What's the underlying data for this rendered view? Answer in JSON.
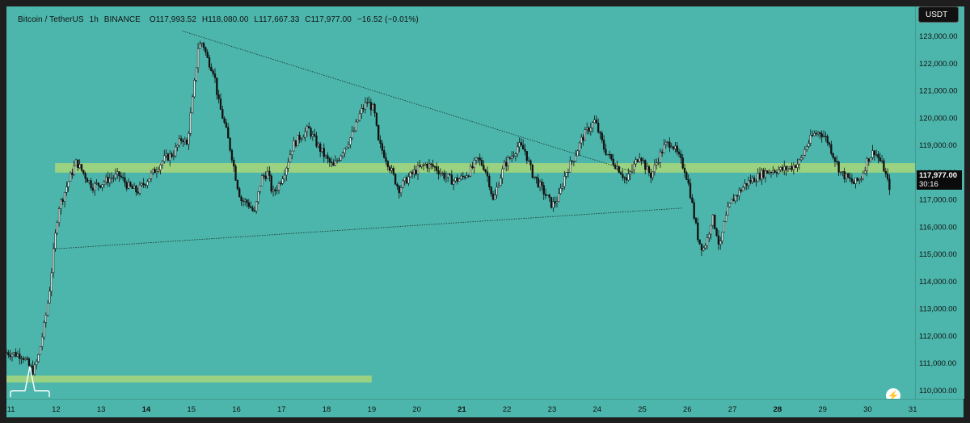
{
  "header": {
    "symbol": "Bitcoin / TetherUS",
    "interval": "1h",
    "exchange": "BINANCE",
    "open": "O117,993.52",
    "high": "H118,080.00",
    "low": "L117,667.33",
    "close": "C117,977.00",
    "change": "−16.52 (−0.01%)"
  },
  "price_axis": {
    "currency_button": "USDT",
    "current_price": "117,977.00",
    "countdown": "30:16"
  },
  "colors": {
    "background": "#4db6ac",
    "candle": "#111111",
    "zone": "#a8d77a"
  },
  "chart_data": {
    "type": "candlestick",
    "title": "",
    "xlabel": "",
    "ylabel": "",
    "ylim": [
      109700,
      124100
    ],
    "xlim": [
      10.9,
      31.05
    ],
    "y_ticks": [
      110000,
      111000,
      112000,
      113000,
      114000,
      115000,
      116000,
      117000,
      118000,
      119000,
      120000,
      121000,
      122000,
      123000
    ],
    "y_tick_labels": [
      "110,000.00",
      "111,000.00",
      "112,000.00",
      "113,000.00",
      "114,000.00",
      "115,000.00",
      "116,000.00",
      "117,000.00",
      "118,000.00",
      "119,000.00",
      "120,000.00",
      "121,000.00",
      "122,000.00",
      "123,000.00"
    ],
    "x_ticks": [
      11,
      12,
      13,
      14,
      15,
      16,
      17,
      18,
      19,
      20,
      21,
      22,
      23,
      24,
      25,
      26,
      27,
      28,
      29,
      30,
      31
    ],
    "x_tick_labels": [
      "11",
      "12",
      "13",
      "14",
      "15",
      "16",
      "17",
      "18",
      "19",
      "20",
      "21",
      "22",
      "23",
      "24",
      "25",
      "26",
      "27",
      "28",
      "29",
      "30",
      "31"
    ],
    "bold_ticks": [
      14,
      21,
      28
    ],
    "price_path_anchors": [
      [
        10.9,
        111400
      ],
      [
        11.25,
        111300
      ],
      [
        11.4,
        110900
      ],
      [
        11.5,
        110700
      ],
      [
        11.6,
        111200
      ],
      [
        11.75,
        112500
      ],
      [
        11.85,
        113600
      ],
      [
        11.95,
        115200
      ],
      [
        12.05,
        116700
      ],
      [
        12.15,
        117100
      ],
      [
        12.3,
        117800
      ],
      [
        12.45,
        118400
      ],
      [
        12.6,
        118000
      ],
      [
        12.8,
        117500
      ],
      [
        13.0,
        117600
      ],
      [
        13.2,
        117800
      ],
      [
        13.4,
        117900
      ],
      [
        13.6,
        117500
      ],
      [
        13.8,
        117300
      ],
      [
        14.0,
        117700
      ],
      [
        14.2,
        118100
      ],
      [
        14.4,
        118500
      ],
      [
        14.6,
        118700
      ],
      [
        14.8,
        119300
      ],
      [
        14.9,
        119000
      ],
      [
        15.05,
        121000
      ],
      [
        15.15,
        122600
      ],
      [
        15.25,
        122800
      ],
      [
        15.35,
        122200
      ],
      [
        15.5,
        121700
      ],
      [
        15.6,
        120600
      ],
      [
        15.75,
        119700
      ],
      [
        15.9,
        118600
      ],
      [
        16.0,
        117700
      ],
      [
        16.1,
        117000
      ],
      [
        16.25,
        116900
      ],
      [
        16.4,
        116500
      ],
      [
        16.55,
        117800
      ],
      [
        16.7,
        118000
      ],
      [
        16.8,
        117200
      ],
      [
        16.95,
        117600
      ],
      [
        17.1,
        118200
      ],
      [
        17.25,
        119000
      ],
      [
        17.4,
        119300
      ],
      [
        17.6,
        119600
      ],
      [
        17.8,
        119000
      ],
      [
        18.0,
        118500
      ],
      [
        18.15,
        118200
      ],
      [
        18.35,
        118800
      ],
      [
        18.5,
        119200
      ],
      [
        18.6,
        119500
      ],
      [
        18.75,
        120200
      ],
      [
        18.9,
        120600
      ],
      [
        19.05,
        120300
      ],
      [
        19.15,
        119100
      ],
      [
        19.3,
        118600
      ],
      [
        19.45,
        118000
      ],
      [
        19.6,
        117400
      ],
      [
        19.8,
        117800
      ],
      [
        20.0,
        118100
      ],
      [
        20.2,
        118300
      ],
      [
        20.4,
        118200
      ],
      [
        20.6,
        117900
      ],
      [
        20.8,
        117700
      ],
      [
        21.0,
        117800
      ],
      [
        21.2,
        118100
      ],
      [
        21.35,
        118500
      ],
      [
        21.5,
        118200
      ],
      [
        21.6,
        117700
      ],
      [
        21.7,
        116900
      ],
      [
        21.8,
        117600
      ],
      [
        21.95,
        118300
      ],
      [
        22.1,
        118600
      ],
      [
        22.25,
        119000
      ],
      [
        22.4,
        118800
      ],
      [
        22.55,
        118000
      ],
      [
        22.7,
        117600
      ],
      [
        22.85,
        117200
      ],
      [
        23.0,
        116800
      ],
      [
        23.15,
        117100
      ],
      [
        23.3,
        118000
      ],
      [
        23.5,
        118600
      ],
      [
        23.65,
        119200
      ],
      [
        23.8,
        119600
      ],
      [
        23.95,
        119900
      ],
      [
        24.05,
        119400
      ],
      [
        24.15,
        118900
      ],
      [
        24.3,
        118500
      ],
      [
        24.5,
        118100
      ],
      [
        24.65,
        117700
      ],
      [
        24.8,
        118200
      ],
      [
        24.95,
        118700
      ],
      [
        25.1,
        118100
      ],
      [
        25.2,
        117900
      ],
      [
        25.35,
        118500
      ],
      [
        25.5,
        119000
      ],
      [
        25.65,
        119100
      ],
      [
        25.8,
        118600
      ],
      [
        25.95,
        118100
      ],
      [
        26.05,
        117400
      ],
      [
        26.15,
        116400
      ],
      [
        26.25,
        115500
      ],
      [
        26.35,
        115200
      ],
      [
        26.45,
        115600
      ],
      [
        26.55,
        116400
      ],
      [
        26.65,
        115800
      ],
      [
        26.72,
        115200
      ],
      [
        26.8,
        116000
      ],
      [
        26.9,
        116600
      ],
      [
        27.0,
        117000
      ],
      [
        27.15,
        117300
      ],
      [
        27.3,
        117600
      ],
      [
        27.5,
        117800
      ],
      [
        27.7,
        118000
      ],
      [
        27.9,
        118100
      ],
      [
        28.1,
        118100
      ],
      [
        28.3,
        118200
      ],
      [
        28.5,
        118400
      ],
      [
        28.65,
        119000
      ],
      [
        28.8,
        119400
      ],
      [
        28.95,
        119500
      ],
      [
        29.1,
        119200
      ],
      [
        29.25,
        118600
      ],
      [
        29.4,
        118000
      ],
      [
        29.55,
        117800
      ],
      [
        29.7,
        117600
      ],
      [
        29.85,
        117800
      ],
      [
        30.0,
        118500
      ],
      [
        30.15,
        118800
      ],
      [
        30.25,
        118500
      ],
      [
        30.35,
        118200
      ],
      [
        30.45,
        117600
      ],
      [
        30.55,
        117300
      ],
      [
        30.7,
        117500
      ],
      [
        30.85,
        117800
      ],
      [
        31.0,
        118000
      ]
    ],
    "annotations": {
      "resistance_zone": [
        118000,
        118350
      ],
      "support_zone": [
        110300,
        110550
      ],
      "support_zone_x": [
        10.9,
        19.0
      ],
      "upper_trendline": [
        [
          14.8,
          123200
        ],
        [
          24.85,
          118000
        ]
      ],
      "lower_trendline": [
        [
          11.95,
          115200
        ],
        [
          25.9,
          116700
        ]
      ],
      "marker_x": 11.42
    }
  }
}
